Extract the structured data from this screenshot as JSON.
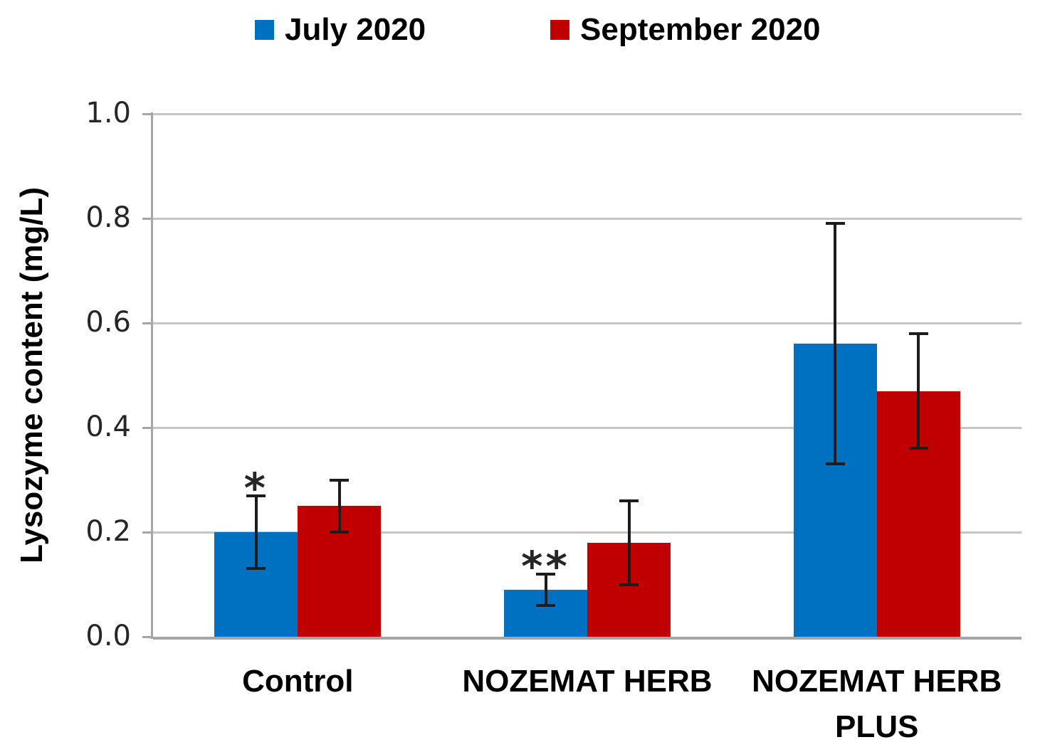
{
  "chart_data": {
    "type": "bar",
    "ylabel": "Lysozyme content (mg/L)",
    "ylim": [
      0.0,
      1.0
    ],
    "ytick_step": 0.2,
    "ytick_labels": [
      "1.0",
      "0.8",
      "0.6",
      "0.4",
      "0.2",
      "0.0"
    ],
    "grid": true,
    "legend_position": "top",
    "categories": [
      "Control",
      "NOZEMAT HERB",
      "NOZEMAT HERB PLUS"
    ],
    "series": [
      {
        "name": "July 2020",
        "color": "#0070C0",
        "values": [
          0.2,
          0.09,
          0.56
        ],
        "error_bars": [
          0.07,
          0.03,
          0.23
        ],
        "annotations": [
          "*",
          "**",
          ""
        ]
      },
      {
        "name": "September 2020",
        "color": "#C00000",
        "values": [
          0.25,
          0.18,
          0.47
        ],
        "error_bars": [
          0.05,
          0.08,
          0.11
        ],
        "annotations": [
          "",
          "",
          ""
        ]
      }
    ],
    "error_bar_color": "#1c1c1c",
    "gridline_color": "#c6c6c6",
    "axis_line_color": "#a6a6a6",
    "text_color": "#000000"
  }
}
